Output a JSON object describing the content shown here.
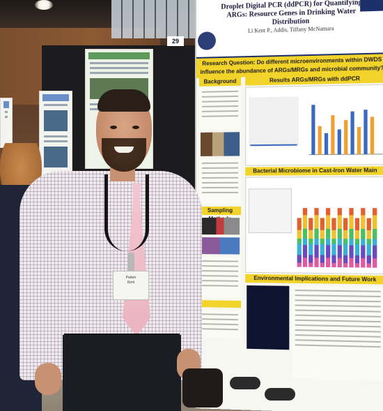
{
  "poster": {
    "title": "Droplet Digital PCR (ddPCR) for Quantifying ARGs: Resource Genes in Drinking Water Distribution",
    "authors": "Li Kent P., Addis, Tiffany McNamara",
    "question": "Research Question: Do different microenvironments within DWDS influence the abundance of ARGs/MRGs and microbial community?",
    "sections": {
      "background": "Background",
      "results": "Results ARGs/MRGs with ddPCR",
      "methods": "Sampling Methods",
      "microbiome": "Bacterial Microbiome in Cast-Iron Water Main",
      "implications": "Environmental Implications and Future Work"
    },
    "colors": {
      "header_accent": "#1d2f6b",
      "section_band": "#f2d32a"
    }
  },
  "board_label": "29",
  "badge": {
    "line1": "Parker",
    "line2": "Kent"
  }
}
